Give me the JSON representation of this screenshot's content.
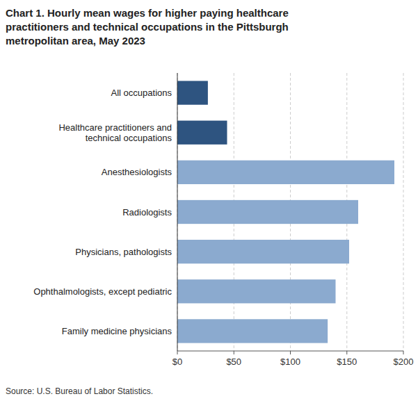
{
  "chart_data": {
    "type": "bar",
    "orientation": "horizontal",
    "title": "Chart 1. Hourly mean wages for higher paying healthcare\npractitioners and technical occupations in the Pittsburgh\nmetropolitan area, May 2023",
    "categories": [
      "Family medicine physicians",
      "Ophthalmologists, except pediatric",
      "Physicians, pathologists",
      "Radiologists",
      "Anesthesiologists",
      "Healthcare practitioners and\ntechnical occupations",
      "All occupations"
    ],
    "values": [
      133,
      140,
      152,
      160,
      192,
      44,
      27
    ],
    "colors": [
      "#8BAACF",
      "#8BAACF",
      "#8BAACF",
      "#8BAACF",
      "#8BAACF",
      "#2E5480",
      "#2E5480"
    ],
    "xlim": [
      0,
      200
    ],
    "xticks": [
      {
        "value": 0,
        "label": "$0"
      },
      {
        "value": 50,
        "label": "$50"
      },
      {
        "value": 100,
        "label": "$100"
      },
      {
        "value": 150,
        "label": "$150"
      },
      {
        "value": 200,
        "label": "$200"
      }
    ],
    "grid": true,
    "source": "Source: U.S. Bureau of Labor Statistics."
  }
}
